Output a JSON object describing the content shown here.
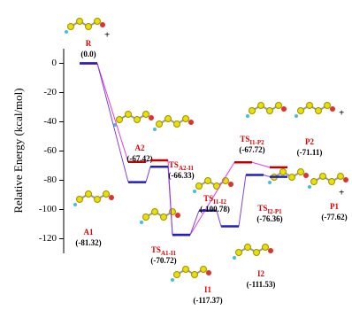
{
  "chart_data": {
    "type": "energy-profile",
    "y_label": "Relative Energy (kcal/mol)",
    "ylim": [
      -130,
      10
    ],
    "yticks": [
      0,
      -20,
      -40,
      -60,
      -80,
      -100,
      -120
    ],
    "plus": "+",
    "series": [
      {
        "color": "#c00000",
        "line_color": "#e040e0",
        "values": [
          0,
          -67.42,
          -66.33,
          -117.37,
          null,
          null,
          -67.72,
          -71.11
        ],
        "labels": [
          "R",
          "A2",
          {
            "main": "TS",
            "sub": "A2-I1"
          },
          "I1",
          null,
          null,
          {
            "main": "TS",
            "sub": "I1-P2"
          },
          "P2"
        ],
        "value_labels": [
          "(0.0)",
          "(-67.42)",
          "(-66.33)",
          "(-117.37)",
          null,
          null,
          "(-67.72)",
          "(-71.11)"
        ]
      },
      {
        "color": "#2020c0",
        "line_color": "#8040e0",
        "values": [
          0,
          -81.32,
          -70.72,
          -117.37,
          -100.78,
          -111.53,
          -76.36,
          -77.62
        ],
        "labels": [
          null,
          "A1",
          {
            "main": "TS",
            "sub": "A1-I1"
          },
          null,
          {
            "main": "TS",
            "sub": "I1-I2"
          },
          "I2",
          {
            "main": "TS",
            "sub": "I2-P1"
          },
          "P1"
        ],
        "value_labels": [
          null,
          "(-81.32)",
          "(-70.72)",
          null,
          "(-100.78)",
          "(-111.53)",
          "(-76.36)",
          "(-77.62)"
        ]
      }
    ]
  }
}
